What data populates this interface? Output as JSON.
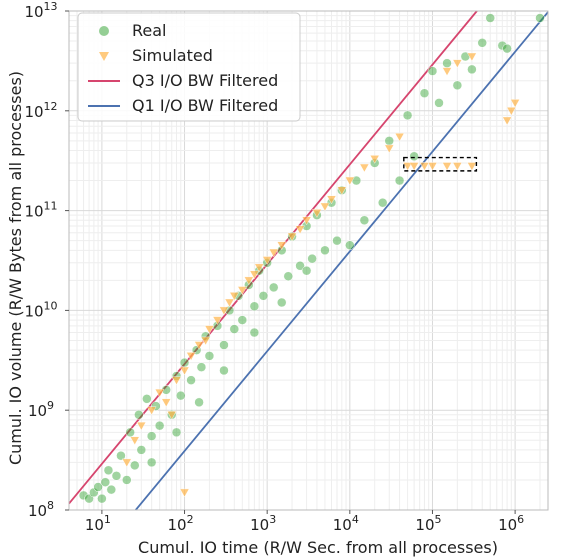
{
  "chart_data": {
    "type": "scatter",
    "title": "",
    "xlabel": "Cumul. IO time (R/W Sec. from all processes)",
    "ylabel": "Cumul. IO volume (R/W Bytes from all processes)",
    "x_scale": "log",
    "y_scale": "log",
    "xlim": [
      4,
      2500000
    ],
    "ylim": [
      100000000,
      10000000000000
    ],
    "x_ticks": [
      {
        "value": 10,
        "base": "10",
        "exp": "1"
      },
      {
        "value": 100,
        "base": "10",
        "exp": "2"
      },
      {
        "value": 1000,
        "base": "10",
        "exp": "3"
      },
      {
        "value": 10000,
        "base": "10",
        "exp": "4"
      },
      {
        "value": 100000,
        "base": "10",
        "exp": "5"
      },
      {
        "value": 1000000,
        "base": "10",
        "exp": "6"
      }
    ],
    "y_ticks": [
      {
        "value": 100000000,
        "base": "10",
        "exp": "8"
      },
      {
        "value": 1000000000,
        "base": "10",
        "exp": "9"
      },
      {
        "value": 10000000000,
        "base": "10",
        "exp": "10"
      },
      {
        "value": 100000000000,
        "base": "10",
        "exp": "11"
      },
      {
        "value": 1000000000000,
        "base": "10",
        "exp": "12"
      },
      {
        "value": 10000000000000,
        "base": "10",
        "exp": "13"
      }
    ],
    "grid": true,
    "legend_position": "top-left",
    "legend": [
      {
        "label": "Real",
        "marker": "circle",
        "color": "#2ca02c"
      },
      {
        "label": "Simulated",
        "marker": "triangle-down",
        "color": "#ffb347"
      },
      {
        "label": "Q3 I/O BW Filtered",
        "marker": "line",
        "color": "#d6456e"
      },
      {
        "label": "Q1 I/O BW Filtered",
        "marker": "line",
        "color": "#4c72b0"
      }
    ],
    "series": [
      {
        "name": "Real",
        "marker": "circle",
        "color": "#2ca02c",
        "points": [
          [
            6,
            140000000
          ],
          [
            7,
            130000000
          ],
          [
            8,
            150000000
          ],
          [
            9,
            170000000
          ],
          [
            10,
            130000000
          ],
          [
            11,
            190000000
          ],
          [
            12,
            250000000
          ],
          [
            13,
            160000000
          ],
          [
            15,
            220000000
          ],
          [
            17,
            350000000
          ],
          [
            20,
            200000000
          ],
          [
            22,
            600000000
          ],
          [
            25,
            280000000
          ],
          [
            28,
            900000000
          ],
          [
            30,
            400000000
          ],
          [
            35,
            1300000000
          ],
          [
            40,
            550000000
          ],
          [
            45,
            1100000000
          ],
          [
            50,
            700000000
          ],
          [
            60,
            1600000000
          ],
          [
            70,
            900000000
          ],
          [
            80,
            2200000000
          ],
          [
            90,
            1400000000
          ],
          [
            100,
            3000000000
          ],
          [
            120,
            2000000000
          ],
          [
            140,
            4000000000
          ],
          [
            160,
            2700000000
          ],
          [
            180,
            5500000000
          ],
          [
            200,
            3500000000
          ],
          [
            250,
            7000000000
          ],
          [
            300,
            4500000000
          ],
          [
            350,
            10000000000
          ],
          [
            400,
            6500000000
          ],
          [
            450,
            14000000000
          ],
          [
            500,
            8000000000
          ],
          [
            600,
            18000000000
          ],
          [
            700,
            11000000000
          ],
          [
            800,
            25000000000
          ],
          [
            900,
            14000000000
          ],
          [
            1000,
            30000000000
          ],
          [
            1200,
            17000000000
          ],
          [
            1500,
            40000000000
          ],
          [
            1800,
            22000000000
          ],
          [
            2000,
            55000000000
          ],
          [
            2500,
            28000000000
          ],
          [
            3000,
            70000000000
          ],
          [
            3500,
            33000000000
          ],
          [
            4000,
            90000000000
          ],
          [
            5000,
            40000000000
          ],
          [
            6000,
            120000000000
          ],
          [
            7000,
            50000000000
          ],
          [
            8000,
            160000000000
          ],
          [
            10000,
            45000000000
          ],
          [
            12000,
            200000000000
          ],
          [
            15000,
            80000000000
          ],
          [
            20000,
            300000000000
          ],
          [
            25000,
            120000000000
          ],
          [
            30000,
            500000000000
          ],
          [
            40000,
            200000000000
          ],
          [
            50000,
            900000000000
          ],
          [
            60000,
            350000000000
          ],
          [
            80000,
            1500000000000
          ],
          [
            100000,
            2500000000000
          ],
          [
            120000,
            1200000000000
          ],
          [
            150000,
            3000000000000
          ],
          [
            200000,
            1800000000000
          ],
          [
            250000,
            3500000000000
          ],
          [
            300000,
            2600000000000
          ],
          [
            400000,
            4800000000000
          ],
          [
            500000,
            8500000000000
          ],
          [
            700000,
            4500000000000
          ],
          [
            800000,
            4200000000000
          ],
          [
            2000000,
            8500000000000
          ],
          [
            3000,
            25000000000
          ],
          [
            1500,
            12000000000
          ],
          [
            700,
            6000000000
          ],
          [
            300,
            2500000000
          ],
          [
            150,
            1200000000
          ],
          [
            80,
            600000000
          ],
          [
            40,
            300000000
          ]
        ]
      },
      {
        "name": "Simulated",
        "marker": "triangle-down",
        "color": "#ffb347",
        "points": [
          [
            20,
            300000000
          ],
          [
            25,
            500000000
          ],
          [
            30,
            700000000
          ],
          [
            40,
            1000000000
          ],
          [
            50,
            1500000000
          ],
          [
            60,
            1200000000
          ],
          [
            80,
            2000000000
          ],
          [
            100,
            2500000000
          ],
          [
            120,
            3500000000
          ],
          [
            150,
            4500000000
          ],
          [
            180,
            5000000000
          ],
          [
            200,
            6500000000
          ],
          [
            250,
            8000000000
          ],
          [
            300,
            10000000000
          ],
          [
            350,
            12000000000
          ],
          [
            400,
            14000000000
          ],
          [
            500,
            16000000000
          ],
          [
            600,
            20000000000
          ],
          [
            700,
            23000000000
          ],
          [
            800,
            27000000000
          ],
          [
            1000,
            32000000000
          ],
          [
            1200,
            38000000000
          ],
          [
            1500,
            45000000000
          ],
          [
            2000,
            55000000000
          ],
          [
            2500,
            65000000000
          ],
          [
            3000,
            80000000000
          ],
          [
            4000,
            95000000000
          ],
          [
            5000,
            110000000000
          ],
          [
            6000,
            130000000000
          ],
          [
            8000,
            160000000000
          ],
          [
            10000,
            200000000000
          ],
          [
            15000,
            270000000000
          ],
          [
            20000,
            330000000000
          ],
          [
            30000,
            420000000000
          ],
          [
            40000,
            550000000000
          ],
          [
            50000,
            280000000000
          ],
          [
            60000,
            280000000000
          ],
          [
            80000,
            280000000000
          ],
          [
            100000,
            280000000000
          ],
          [
            150000,
            280000000000
          ],
          [
            200000,
            280000000000
          ],
          [
            300000,
            280000000000
          ],
          [
            150000,
            2500000000000
          ],
          [
            200000,
            3000000000000
          ],
          [
            300000,
            3500000000000
          ],
          [
            800000,
            800000000000
          ],
          [
            900000,
            1000000000000
          ],
          [
            1000000,
            1200000000000
          ],
          [
            100,
            150000000
          ],
          [
            70,
            900000000
          ]
        ]
      }
    ],
    "lines": [
      {
        "name": "Q3 I/O BW Filtered",
        "color": "#d6456e",
        "slope_bytes_per_sec": 29000000
      },
      {
        "name": "Q1 I/O BW Filtered",
        "color": "#4c72b0",
        "slope_bytes_per_sec": 3900000
      }
    ],
    "highlight_box": {
      "x": [
        45000,
        340000
      ],
      "y": [
        250000000000,
        340000000000
      ]
    }
  }
}
